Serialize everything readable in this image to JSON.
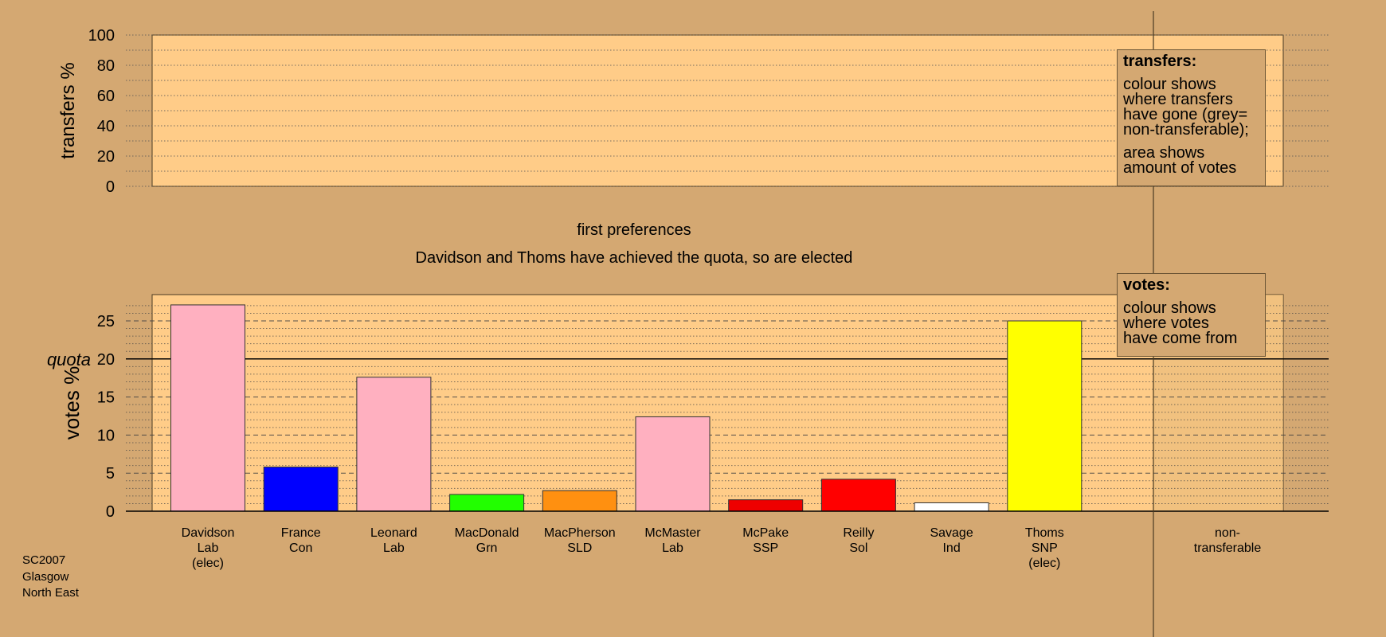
{
  "chart_data": [
    {
      "type": "bar",
      "ylabel": "transfers %",
      "ylim": [
        0,
        100
      ],
      "yticks": [
        0,
        20,
        40,
        60,
        80,
        100
      ],
      "grid": "dotted",
      "categories": [],
      "values": []
    },
    {
      "type": "bar",
      "title": "first preferences",
      "subtitle": "Davidson and Thoms have achieved the quota, so are elected",
      "ylabel": "votes %",
      "ylim": [
        0,
        28
      ],
      "yticks": [
        0,
        5,
        10,
        15,
        20,
        25
      ],
      "grid": "dotted minor, dashed major",
      "quota": {
        "label": "quota",
        "value": 20
      },
      "categories": [
        [
          "Davidson",
          "Lab",
          "(elec)"
        ],
        [
          "France",
          "Con"
        ],
        [
          "Leonard",
          "Lab"
        ],
        [
          "MacDonald",
          "Grn"
        ],
        [
          "MacPherson",
          "SLD"
        ],
        [
          "McMaster",
          "Lab"
        ],
        [
          "McPake",
          "SSP"
        ],
        [
          "Reilly",
          "Sol"
        ],
        [
          "Savage",
          "Ind"
        ],
        [
          "Thoms",
          "SNP",
          "(elec)"
        ]
      ],
      "values": [
        27.1,
        5.8,
        17.6,
        2.2,
        2.7,
        12.4,
        1.5,
        4.2,
        1.1,
        25.0
      ],
      "colors": [
        "#FFB0C0",
        "#0000FF",
        "#FFB0C0",
        "#22FF00",
        "#FF9010",
        "#FFB0C0",
        "#EE0000",
        "#FF0000",
        "#FFFFFF",
        "#FFFF00"
      ],
      "extra_category": [
        "non-",
        "transferable"
      ]
    }
  ],
  "legends": {
    "transfers": {
      "title": "transfers:",
      "para1": [
        "colour shows",
        "where transfers",
        "have gone (grey=",
        "non-transferable);"
      ],
      "para2": [
        "area shows",
        "amount of votes"
      ]
    },
    "votes": {
      "title": "votes:",
      "para1": [
        "colour shows",
        "where votes",
        "have come from"
      ]
    }
  },
  "source_lines": [
    "SC2007",
    "Glasgow",
    "North East"
  ],
  "colors": {
    "background": "#D4A872",
    "panel": "#FFCC88",
    "panel_shade": "#E8B97A"
  }
}
